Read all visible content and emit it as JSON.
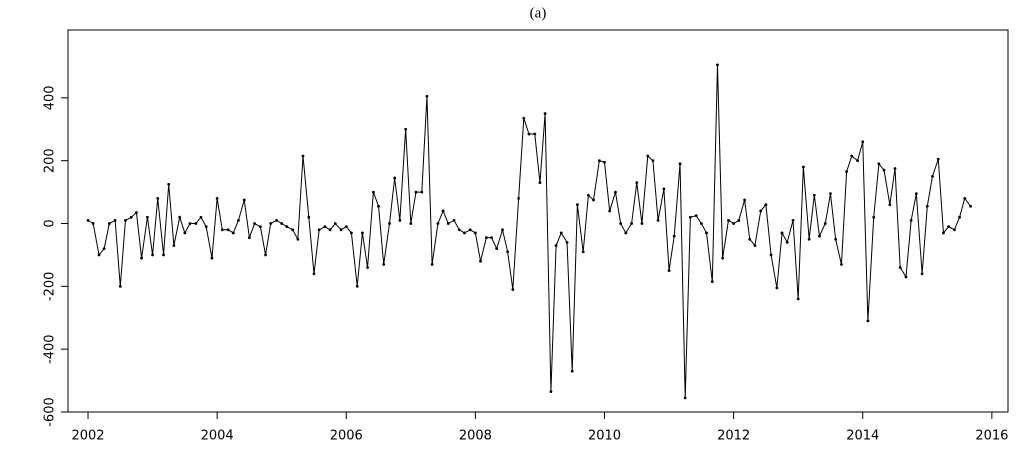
{
  "chart_data": {
    "type": "line",
    "title": "(a)",
    "color": "#000000",
    "grid": false,
    "xlim": [
      2001.69,
      2016.25
    ],
    "xticks": [
      2002,
      2004,
      2006,
      2008,
      2010,
      2012,
      2014,
      2016
    ],
    "ylim": [
      -600,
      616
    ],
    "yticks": [
      -600,
      -400,
      -200,
      0,
      200,
      400
    ],
    "x": [
      2002.0,
      2002.08,
      2002.17,
      2002.25,
      2002.33,
      2002.42,
      2002.5,
      2002.58,
      2002.67,
      2002.75,
      2002.83,
      2002.92,
      2003.0,
      2003.08,
      2003.17,
      2003.25,
      2003.33,
      2003.42,
      2003.5,
      2003.58,
      2003.67,
      2003.75,
      2003.83,
      2003.92,
      2004.0,
      2004.08,
      2004.17,
      2004.25,
      2004.33,
      2004.42,
      2004.5,
      2004.58,
      2004.67,
      2004.75,
      2004.83,
      2004.92,
      2005.0,
      2005.08,
      2005.17,
      2005.25,
      2005.33,
      2005.42,
      2005.5,
      2005.58,
      2005.67,
      2005.75,
      2005.83,
      2005.92,
      2006.0,
      2006.08,
      2006.17,
      2006.25,
      2006.33,
      2006.42,
      2006.5,
      2006.58,
      2006.67,
      2006.75,
      2006.83,
      2006.92,
      2007.0,
      2007.08,
      2007.17,
      2007.25,
      2007.33,
      2007.42,
      2007.5,
      2007.58,
      2007.67,
      2007.75,
      2007.83,
      2007.92,
      2008.0,
      2008.08,
      2008.17,
      2008.25,
      2008.33,
      2008.42,
      2008.5,
      2008.58,
      2008.67,
      2008.75,
      2008.83,
      2008.92,
      2009.0,
      2009.08,
      2009.17,
      2009.25,
      2009.33,
      2009.42,
      2009.5,
      2009.58,
      2009.67,
      2009.75,
      2009.83,
      2009.92,
      2010.0,
      2010.08,
      2010.17,
      2010.25,
      2010.33,
      2010.42,
      2010.5,
      2010.58,
      2010.67,
      2010.75,
      2010.83,
      2010.92,
      2011.0,
      2011.08,
      2011.17,
      2011.25,
      2011.33,
      2011.42,
      2011.5,
      2011.58,
      2011.67,
      2011.75,
      2011.83,
      2011.92,
      2012.0,
      2012.08,
      2012.17,
      2012.25,
      2012.33,
      2012.42,
      2012.5,
      2012.58,
      2012.67,
      2012.75,
      2012.83,
      2012.92,
      2013.0,
      2013.08,
      2013.17,
      2013.25,
      2013.33,
      2013.42,
      2013.5,
      2013.58,
      2013.67,
      2013.75,
      2013.83,
      2013.92,
      2014.0,
      2014.08,
      2014.17,
      2014.25,
      2014.33,
      2014.42,
      2014.5,
      2014.58,
      2014.67,
      2014.75,
      2014.83,
      2014.92,
      2015.0,
      2015.08,
      2015.17,
      2015.25,
      2015.33,
      2015.42,
      2015.5,
      2015.58,
      2015.67
    ],
    "values": [
      10,
      0,
      -100,
      -80,
      0,
      10,
      -200,
      10,
      20,
      35,
      -110,
      20,
      -100,
      80,
      -100,
      125,
      -70,
      20,
      -30,
      0,
      0,
      20,
      -10,
      -110,
      80,
      -20,
      -20,
      -30,
      10,
      75,
      -45,
      0,
      -10,
      -100,
      0,
      10,
      0,
      -10,
      -20,
      -50,
      215,
      20,
      -160,
      -20,
      -10,
      -20,
      0,
      -20,
      -10,
      -30,
      -200,
      -30,
      -140,
      100,
      55,
      -130,
      0,
      145,
      10,
      300,
      0,
      100,
      100,
      405,
      -130,
      0,
      40,
      0,
      10,
      -20,
      -30,
      -20,
      -30,
      -120,
      -45,
      -45,
      -80,
      -20,
      -90,
      -210,
      80,
      335,
      285,
      285,
      130,
      350,
      -535,
      -70,
      -30,
      -60,
      -470,
      60,
      -90,
      90,
      75,
      200,
      195,
      40,
      100,
      0,
      -30,
      0,
      130,
      0,
      215,
      200,
      10,
      110,
      -150,
      -40,
      190,
      -555,
      20,
      25,
      0,
      -30,
      -185,
      505,
      -110,
      10,
      0,
      10,
      75,
      -50,
      -70,
      40,
      60,
      -100,
      -205,
      -30,
      -60,
      10,
      -240,
      180,
      -50,
      90,
      -40,
      0,
      95,
      -50,
      -130,
      165,
      215,
      200,
      260,
      -310,
      20,
      190,
      170,
      60,
      175,
      -140,
      -170,
      10,
      95,
      -160,
      55,
      150,
      205,
      -30,
      -10,
      -20,
      20,
      80,
      55
    ]
  }
}
